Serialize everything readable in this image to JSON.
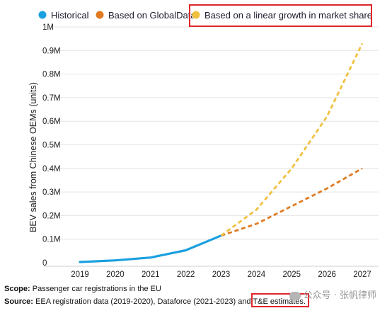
{
  "chart_data": {
    "type": "line",
    "x": [
      2019,
      2020,
      2021,
      2022,
      2023,
      2024,
      2025,
      2026,
      2027
    ],
    "series": [
      {
        "name": "Historical",
        "color": "#1aa0e0",
        "style": "solid",
        "points": [
          [
            2019,
            0.003
          ],
          [
            2020,
            0.01
          ],
          [
            2021,
            0.022
          ],
          [
            2022,
            0.053
          ],
          [
            2023,
            0.115
          ]
        ]
      },
      {
        "name": "Based on GlobalData",
        "color": "#e07b22",
        "style": "dashed",
        "points": [
          [
            2023,
            0.115
          ],
          [
            2024,
            0.165
          ],
          [
            2025,
            0.24
          ],
          [
            2026,
            0.315
          ],
          [
            2027,
            0.4
          ]
        ]
      },
      {
        "name": "Based on a linear growth in market share",
        "color": "#f0c040",
        "style": "dashed",
        "points": [
          [
            2023,
            0.115
          ],
          [
            2024,
            0.225
          ],
          [
            2025,
            0.4
          ],
          [
            2026,
            0.62
          ],
          [
            2027,
            0.93
          ]
        ]
      }
    ],
    "ylim": [
      0,
      1
    ],
    "yticks": [
      0,
      0.1,
      0.2,
      0.3,
      0.4,
      0.5,
      0.6,
      0.7,
      0.8,
      0.9,
      1.0
    ],
    "ytick_labels": [
      "0",
      "0.1M",
      "0.2M",
      "0.3M",
      "0.4M",
      "0.5M",
      "0.6M",
      "0.7M",
      "0.8M",
      "0.9M",
      "1M"
    ],
    "xtick_labels": [
      "2019",
      "2020",
      "2021",
      "2022",
      "2023",
      "2024",
      "2025",
      "2026",
      "2027"
    ],
    "ylabel": "BEV sales from Chinese OEMs (units)",
    "xlabel": "",
    "grid": true,
    "legend_position": "top"
  },
  "notes": {
    "scope_label": "Scope:",
    "scope_text": " Passenger car registrations in the EU",
    "source_label": "Source:",
    "source_text": " EEA registration data (2019-2020), Dataforce (2021-2023) and T&E estimates."
  },
  "watermark": "公众号 · 张帆律师",
  "highlight_color": "#e0262b"
}
